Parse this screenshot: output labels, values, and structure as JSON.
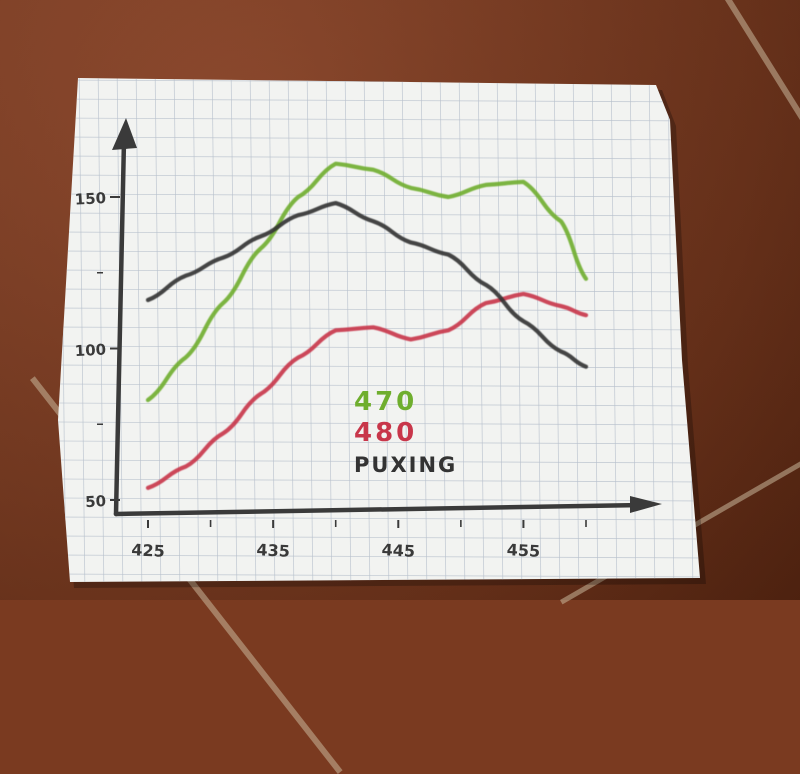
{
  "chart_data": {
    "type": "line",
    "title": "",
    "xlabel": "",
    "ylabel": "",
    "x_ticks": [
      {
        "value": 425,
        "label": "425"
      },
      {
        "value": 435,
        "label": "435"
      },
      {
        "value": 445,
        "label": "445"
      },
      {
        "value": 455,
        "label": "455"
      }
    ],
    "y_ticks": [
      {
        "value": 50,
        "label": "50"
      },
      {
        "value": 100,
        "label": "100"
      },
      {
        "value": 150,
        "label": "150"
      }
    ],
    "xlim": [
      425,
      460
    ],
    "ylim": [
      50,
      170
    ],
    "legend_position": "center",
    "series": [
      {
        "name": "470",
        "color": "#6fae2e",
        "points": [
          [
            425,
            83
          ],
          [
            428,
            97
          ],
          [
            431,
            115
          ],
          [
            434,
            133
          ],
          [
            437,
            150
          ],
          [
            440,
            161
          ],
          [
            443,
            159
          ],
          [
            446,
            153
          ],
          [
            449,
            150
          ],
          [
            452,
            154
          ],
          [
            455,
            155
          ],
          [
            458,
            142
          ],
          [
            460,
            123
          ]
        ]
      },
      {
        "name": "480",
        "color": "#c8364a",
        "points": [
          [
            425,
            54
          ],
          [
            428,
            61
          ],
          [
            431,
            72
          ],
          [
            434,
            85
          ],
          [
            437,
            97
          ],
          [
            440,
            106
          ],
          [
            443,
            107
          ],
          [
            446,
            103
          ],
          [
            449,
            106
          ],
          [
            452,
            115
          ],
          [
            455,
            118
          ],
          [
            458,
            114
          ],
          [
            460,
            111
          ]
        ]
      },
      {
        "name": "PUXING",
        "color": "#333333",
        "points": [
          [
            425,
            116
          ],
          [
            428,
            124
          ],
          [
            431,
            130
          ],
          [
            434,
            137
          ],
          [
            437,
            144
          ],
          [
            440,
            148
          ],
          [
            443,
            142
          ],
          [
            446,
            135
          ],
          [
            449,
            131
          ],
          [
            452,
            121
          ],
          [
            455,
            109
          ],
          [
            458,
            99
          ],
          [
            460,
            94
          ]
        ]
      }
    ]
  },
  "colors": {
    "paper": "#f2f3f1",
    "grid": "#b7c0cc",
    "axis": "#3a3a3a",
    "floor": "#7a3a20"
  }
}
